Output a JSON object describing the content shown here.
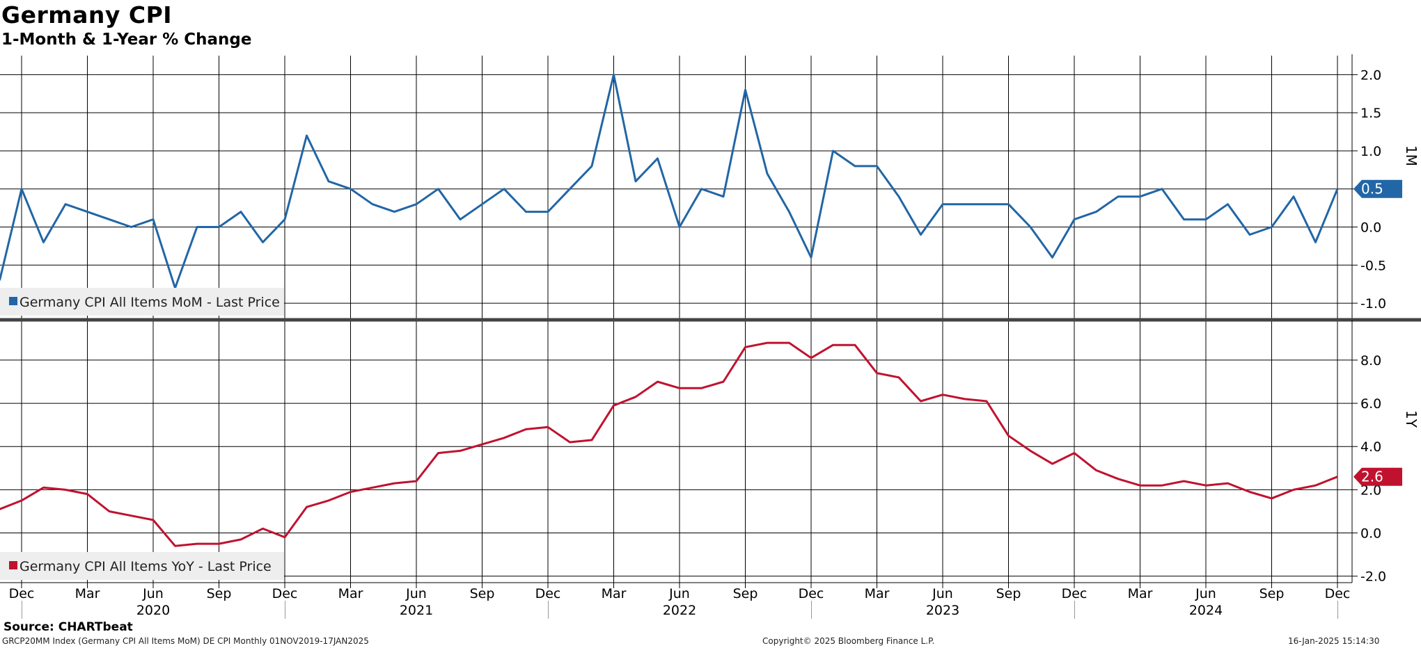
{
  "title": "Germany CPI",
  "subtitle": "1-Month & 1-Year % Change",
  "source": "Source: CHARTbeat",
  "footer": {
    "left": "GRCP20MM Index (Germany CPI All Items MoM) DE CPI  Monthly 01NOV2019-17JAN2025",
    "center": "Copyright© 2025 Bloomberg Finance L.P.",
    "right": "16-Jan-2025 15:14:30"
  },
  "colors": {
    "mom": "#2166a6",
    "yoy": "#c0122f"
  },
  "chart_data": [
    {
      "type": "line",
      "panel": "top",
      "axis_label": "1M",
      "legend": "Germany CPI All Items MoM - Last Price",
      "last_value_label": "0.5",
      "ylim": [
        -1.2,
        2.25
      ],
      "yticks": [
        "2.0",
        "1.5",
        "1.0",
        "0.5",
        "0.0",
        "-0.5",
        "-1.0"
      ],
      "ytick_values": [
        2.0,
        1.5,
        1.0,
        0.5,
        0.0,
        -0.5,
        -1.0
      ],
      "grid": true,
      "series": [
        {
          "x": [
            "2019-11",
            "2019-12",
            "2020-01",
            "2020-02",
            "2020-03",
            "2020-04",
            "2020-05",
            "2020-06",
            "2020-07",
            "2020-08",
            "2020-09",
            "2020-10",
            "2020-11",
            "2020-12",
            "2021-01",
            "2021-02",
            "2021-03",
            "2021-04",
            "2021-05",
            "2021-06",
            "2021-07",
            "2021-08",
            "2021-09",
            "2021-10",
            "2021-11",
            "2021-12",
            "2022-01",
            "2022-02",
            "2022-03",
            "2022-04",
            "2022-05",
            "2022-06",
            "2022-07",
            "2022-08",
            "2022-09",
            "2022-10",
            "2022-11",
            "2022-12",
            "2023-01",
            "2023-02",
            "2023-03",
            "2023-04",
            "2023-05",
            "2023-06",
            "2023-07",
            "2023-08",
            "2023-09",
            "2023-10",
            "2023-11",
            "2023-12",
            "2024-01",
            "2024-02",
            "2024-03",
            "2024-04",
            "2024-05",
            "2024-06",
            "2024-07",
            "2024-08",
            "2024-09",
            "2024-10",
            "2024-11",
            "2024-12"
          ],
          "values": [
            -0.7,
            0.5,
            -0.2,
            0.3,
            0.2,
            0.1,
            0.0,
            0.1,
            -0.8,
            0.0,
            0.0,
            0.2,
            -0.2,
            0.1,
            1.2,
            0.6,
            0.5,
            0.3,
            0.2,
            0.3,
            0.5,
            0.1,
            0.3,
            0.5,
            0.2,
            0.2,
            0.5,
            0.8,
            2.0,
            0.6,
            0.9,
            0.0,
            0.5,
            0.4,
            1.8,
            0.7,
            0.2,
            -0.4,
            1.0,
            0.8,
            0.8,
            0.4,
            -0.1,
            0.3,
            0.3,
            0.3,
            0.3,
            0.0,
            -0.4,
            0.1,
            0.2,
            0.4,
            0.4,
            0.5,
            0.1,
            0.1,
            0.3,
            -0.1,
            0.0,
            0.4,
            -0.2,
            0.5
          ]
        }
      ]
    },
    {
      "type": "line",
      "panel": "bottom",
      "axis_label": "1Y",
      "legend": "Germany CPI All Items YoY - Last Price",
      "last_value_label": "2.6",
      "ylim": [
        -2.3,
        9.8
      ],
      "yticks": [
        "8.0",
        "6.0",
        "4.0",
        "2.0",
        "0.0",
        "-2.0"
      ],
      "ytick_values": [
        8,
        6,
        4,
        2,
        0,
        -2
      ],
      "grid": true,
      "series": [
        {
          "x": [
            "2019-11",
            "2019-12",
            "2020-01",
            "2020-02",
            "2020-03",
            "2020-04",
            "2020-05",
            "2020-06",
            "2020-07",
            "2020-08",
            "2020-09",
            "2020-10",
            "2020-11",
            "2020-12",
            "2021-01",
            "2021-02",
            "2021-03",
            "2021-04",
            "2021-05",
            "2021-06",
            "2021-07",
            "2021-08",
            "2021-09",
            "2021-10",
            "2021-11",
            "2021-12",
            "2022-01",
            "2022-02",
            "2022-03",
            "2022-04",
            "2022-05",
            "2022-06",
            "2022-07",
            "2022-08",
            "2022-09",
            "2022-10",
            "2022-11",
            "2022-12",
            "2023-01",
            "2023-02",
            "2023-03",
            "2023-04",
            "2023-05",
            "2023-06",
            "2023-07",
            "2023-08",
            "2023-09",
            "2023-10",
            "2023-11",
            "2023-12",
            "2024-01",
            "2024-02",
            "2024-03",
            "2024-04",
            "2024-05",
            "2024-06",
            "2024-07",
            "2024-08",
            "2024-09",
            "2024-10",
            "2024-11",
            "2024-12"
          ],
          "values": [
            1.1,
            1.5,
            2.1,
            2.0,
            1.8,
            1.0,
            0.8,
            0.6,
            -0.6,
            -0.5,
            -0.5,
            -0.3,
            0.2,
            -0.2,
            1.2,
            1.5,
            1.9,
            2.1,
            2.3,
            2.4,
            3.7,
            3.8,
            4.1,
            4.4,
            4.8,
            4.9,
            4.2,
            4.3,
            5.9,
            6.3,
            7.0,
            6.7,
            6.7,
            7.0,
            8.6,
            8.8,
            8.8,
            8.1,
            8.7,
            8.7,
            7.4,
            7.2,
            6.1,
            6.4,
            6.2,
            6.1,
            4.5,
            3.8,
            3.2,
            3.7,
            2.9,
            2.5,
            2.2,
            2.2,
            2.4,
            2.2,
            2.3,
            1.9,
            1.6,
            2.0,
            2.2,
            2.6
          ]
        }
      ]
    }
  ],
  "x_axis": {
    "month_ticks": [
      {
        "date": "2019-12",
        "label": "Dec"
      },
      {
        "date": "2020-03",
        "label": "Mar"
      },
      {
        "date": "2020-06",
        "label": "Jun"
      },
      {
        "date": "2020-09",
        "label": "Sep"
      },
      {
        "date": "2020-12",
        "label": "Dec"
      },
      {
        "date": "2021-03",
        "label": "Mar"
      },
      {
        "date": "2021-06",
        "label": "Jun"
      },
      {
        "date": "2021-09",
        "label": "Sep"
      },
      {
        "date": "2021-12",
        "label": "Dec"
      },
      {
        "date": "2022-03",
        "label": "Mar"
      },
      {
        "date": "2022-06",
        "label": "Jun"
      },
      {
        "date": "2022-09",
        "label": "Sep"
      },
      {
        "date": "2022-12",
        "label": "Dec"
      },
      {
        "date": "2023-03",
        "label": "Mar"
      },
      {
        "date": "2023-06",
        "label": "Jun"
      },
      {
        "date": "2023-09",
        "label": "Sep"
      },
      {
        "date": "2023-12",
        "label": "Dec"
      },
      {
        "date": "2024-03",
        "label": "Mar"
      },
      {
        "date": "2024-06",
        "label": "Jun"
      },
      {
        "date": "2024-09",
        "label": "Sep"
      },
      {
        "date": "2024-12",
        "label": "Dec"
      }
    ],
    "year_labels": [
      {
        "date": "2020-06",
        "label": "2020"
      },
      {
        "date": "2021-06",
        "label": "2021"
      },
      {
        "date": "2022-06",
        "label": "2022"
      },
      {
        "date": "2023-06",
        "label": "2023"
      },
      {
        "date": "2024-06",
        "label": "2024"
      }
    ]
  }
}
